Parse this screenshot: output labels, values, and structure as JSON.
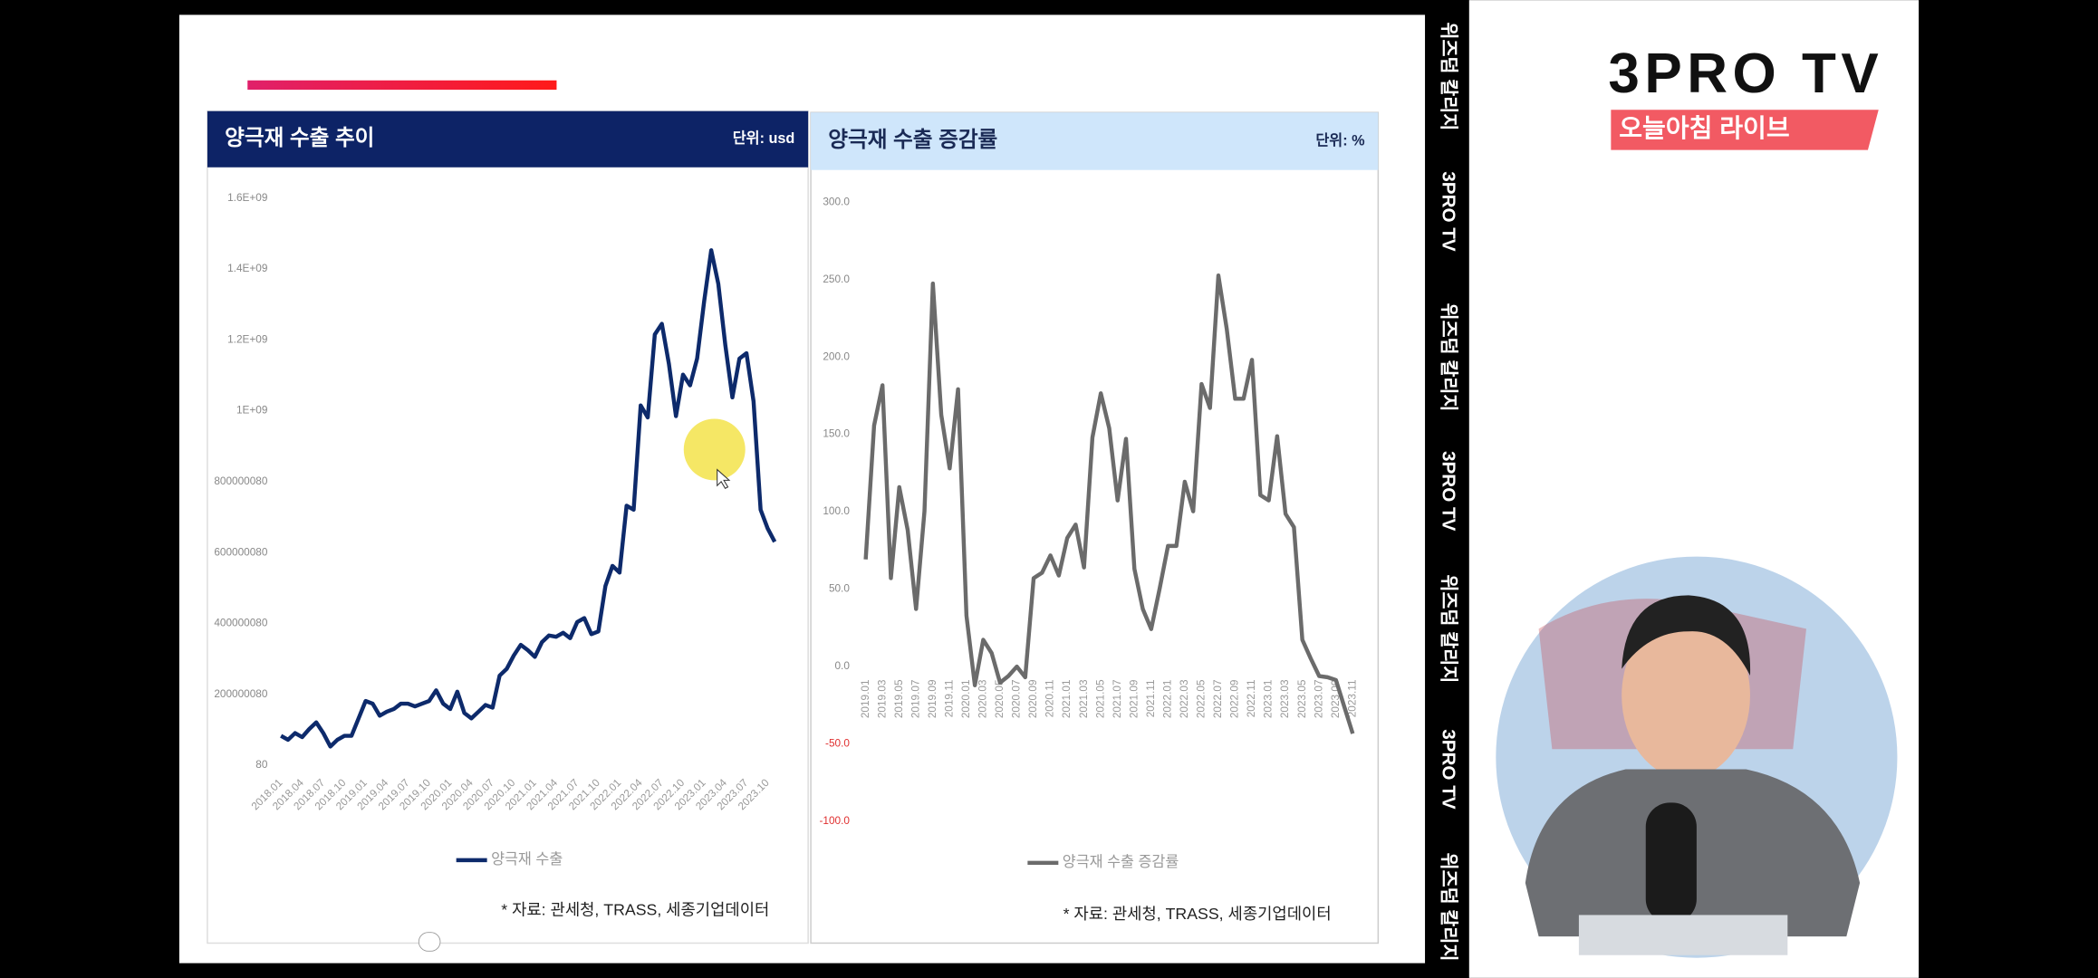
{
  "logo": {
    "title": "3PRO TV",
    "subtitle": "오늘아침 라이브"
  },
  "sidebar": [
    "위즈덤 칼리지",
    "3PRO TV",
    "위즈덤 칼리지",
    "3PRO TV",
    "위즈덤 칼리지",
    "3PRO TV",
    "위즈덤 칼리지"
  ],
  "chart_data": [
    {
      "type": "line",
      "title": "양극재 수출 추이",
      "unit": "단위: usd",
      "source": "* 자료: 관세청, TRASS, 세종기업데이터",
      "categories": [
        "2018.01",
        null,
        null,
        "2018.04",
        null,
        null,
        "2018.07",
        null,
        null,
        "2018.10",
        null,
        null,
        "2019.01",
        null,
        null,
        "2019.04",
        null,
        null,
        "2019.07",
        null,
        null,
        "2019.10",
        null,
        null,
        "2020.01",
        null,
        null,
        "2020.04",
        null,
        null,
        "2020.07",
        null,
        null,
        "2020.10",
        null,
        null,
        "2021.01",
        null,
        null,
        "2021.04",
        null,
        null,
        "2021.07",
        null,
        null,
        "2021.10",
        null,
        null,
        "2022.01",
        null,
        null,
        "2022.04",
        null,
        null,
        "2022.07",
        null,
        null,
        "2022.10",
        null,
        null,
        "2023.01",
        null,
        null,
        "2023.04",
        null,
        null,
        "2023.07",
        null,
        null,
        "2023.10",
        null
      ],
      "series": [
        {
          "name": "양극재 수출",
          "color": "#0d2a6b",
          "values": [
            83000000,
            71700000,
            90600000,
            79200000,
            101900000,
            120800000,
            90600000,
            52800000,
            71700000,
            83000000,
            83000000,
            132100000,
            181100000,
            173600000,
            139600000,
            150900000,
            158500000,
            173600000,
            173600000,
            166000000,
            173600000,
            181100000,
            211300000,
            173600000,
            158500000,
            207500000,
            147200000,
            132100000,
            150900000,
            169800000,
            162300000,
            252800000,
            271700000,
            309400000,
            339600000,
            324500000,
            305700000,
            347200000,
            366000000,
            362300000,
            373600000,
            358500000,
            403800000,
            415100000,
            369800000,
            377400000,
            505700000,
            562300000,
            543400000,
            732100000,
            720800000,
            1015100000,
            981100000,
            1215100000,
            1245300000,
            1132100000,
            984900000,
            1101900000,
            1071700000,
            1147200000,
            1309400000,
            1452800000,
            1358500000,
            1184900000,
            1037700000,
            1147200000,
            1162300000,
            1026400000,
            720800000,
            667900000,
            630200000
          ]
        }
      ],
      "ylim": [
        80,
        1600000000
      ],
      "yticks": [
        80,
        200000080,
        400000080,
        600000080,
        800000080,
        {
          "value": 1000000000,
          "label": "1E+09"
        },
        {
          "value": 1200000000,
          "label": "1.2E+09"
        },
        {
          "value": 1400000000,
          "label": "1.4E+09"
        },
        {
          "value": 1600000000,
          "label": "1.6E+09"
        }
      ],
      "grid": false,
      "header_color": "#0d2366",
      "header_text_color": "#ffffff",
      "x_label_rotation": -45
    },
    {
      "type": "line",
      "title": "양극재 수출 증감률",
      "unit": "단위: %",
      "source": "* 자료: 관세청, TRASS, 세종기업데이터",
      "categories": [
        "2019.01",
        null,
        "2019.03",
        null,
        "2019.05",
        null,
        "2019.07",
        null,
        "2019.09",
        null,
        "2019.11",
        null,
        "2020.01",
        null,
        "2020.03",
        null,
        "2020.05",
        null,
        "2020.07",
        null,
        "2020.09",
        null,
        "2020.11",
        null,
        "2021.01",
        null,
        "2021.03",
        null,
        "2021.05",
        null,
        "2021.07",
        null,
        "2021.09",
        null,
        "2021.11",
        null,
        "2022.01",
        null,
        "2022.03",
        null,
        "2022.05",
        null,
        "2022.07",
        null,
        "2022.09",
        null,
        "2022.11",
        null,
        "2023.01",
        null,
        "2023.03",
        null,
        "2023.05",
        null,
        "2023.07",
        null,
        "2023.09",
        null,
        "2023.11"
      ],
      "series": [
        {
          "name": "양극재 수출 증감률",
          "color": "#6b6b6b",
          "values": [
            69.2,
            155.7,
            181.7,
            57.1,
            115.9,
            88.2,
            37.2,
            100.3,
            247.4,
            162.6,
            128,
            179.1,
            32.9,
            -12.1,
            17.3,
            8.7,
            -10.4,
            -6.1,
            0,
            -6.9,
            57.1,
            60.6,
            71.8,
            58.8,
            83,
            91.7,
            64,
            147.9,
            176.5,
            154,
            107.3,
            147.1,
            63.1,
            37.2,
            24.2,
            50.2,
            77.9,
            77.9,
            119.4,
            100.3,
            182.5,
            167,
            252.6,
            218,
            173,
            173,
            198.1,
            110.7,
            107.3,
            148.8,
            98.6,
            90,
            17.3,
            5.2,
            -6.1,
            -6.9,
            -8.7,
            -26,
            -43.3
          ]
        }
      ],
      "ylim": [
        -100,
        300
      ],
      "yticks": [
        {
          "value": -100,
          "label": "-100.0"
        },
        {
          "value": -50,
          "label": "-50.0"
        },
        {
          "value": 0,
          "label": "0.0"
        },
        {
          "value": 50,
          "label": "50.0"
        },
        {
          "value": 100,
          "label": "100.0"
        },
        {
          "value": 150,
          "label": "150.0"
        },
        {
          "value": 200,
          "label": "200.0"
        },
        {
          "value": 250,
          "label": "250.0"
        },
        {
          "value": 300,
          "label": "300.0"
        }
      ],
      "grid": false,
      "header_color": "#cfe6fb",
      "header_text_color": "#1a2a55",
      "negative_tick_color": "#e03030",
      "x_label_rotation": -90
    }
  ]
}
